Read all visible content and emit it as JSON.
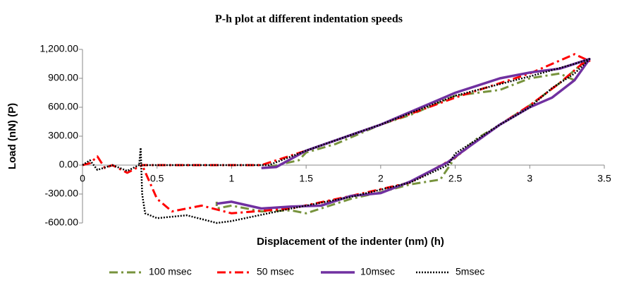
{
  "chart_data": {
    "type": "line",
    "title": "P-h plot at different indentation speeds",
    "xlabel": "Displacement of the indenter (nm) (h)",
    "ylabel": "Load (nN) (P)",
    "xlim": [
      0,
      3.5
    ],
    "xticks": [
      0,
      0.5,
      1,
      1.5,
      2,
      2.5,
      3,
      3.5
    ],
    "ylim": [
      -600,
      1200
    ],
    "yticks": [
      {
        "value": -600,
        "label": "-600.00"
      },
      {
        "value": -300,
        "label": "-300.00"
      },
      {
        "value": 0,
        "label": "0.00"
      },
      {
        "value": 300,
        "label": "300.00"
      },
      {
        "value": 600,
        "label": "600.00"
      },
      {
        "value": 900,
        "label": "900.00"
      },
      {
        "value": 1200,
        "label": "1,200.00"
      }
    ],
    "grid": false,
    "legend": "bottom",
    "series": [
      {
        "name": "100 msec",
        "color": "#77933c",
        "dash": "dashdot",
        "x": [
          1.25,
          1.45,
          1.5,
          1.7,
          2.0,
          2.2,
          2.5,
          2.8,
          3.0,
          3.2,
          3.3,
          3.4,
          3.35,
          3.2,
          3.0,
          2.8,
          2.65,
          2.5,
          2.4,
          2.2,
          2.0,
          1.8,
          1.5,
          1.4,
          1.2,
          1.0,
          0.9,
          0.9
        ],
        "values": [
          -20,
          50,
          130,
          220,
          420,
          520,
          720,
          780,
          900,
          950,
          880,
          1100,
          1050,
          850,
          620,
          420,
          280,
          80,
          -150,
          -200,
          -280,
          -350,
          -500,
          -470,
          -480,
          -420,
          -450,
          -380
        ]
      },
      {
        "name": "50 msec",
        "color": "#ff0000",
        "dash": "dashdot",
        "x": [
          0,
          0.05,
          0.1,
          0.15,
          0.2,
          0.3,
          0.4,
          1.2,
          1.5,
          2.0,
          2.5,
          3.0,
          3.3,
          3.4,
          3.35,
          3.2,
          3.0,
          2.8,
          2.6,
          2.5,
          2.2,
          1.8,
          1.4,
          1.0,
          0.8,
          0.6,
          0.5,
          0.4
        ],
        "values": [
          0,
          20,
          90,
          -30,
          0,
          -80,
          0,
          0,
          150,
          420,
          700,
          950,
          1150,
          1080,
          1050,
          850,
          620,
          420,
          200,
          80,
          -180,
          -320,
          -450,
          -500,
          -420,
          -480,
          -350,
          0
        ]
      },
      {
        "name": "10msec",
        "color": "#7030a0",
        "dash": "solid",
        "x": [
          1.2,
          1.3,
          1.5,
          2.0,
          2.5,
          2.8,
          3.0,
          3.2,
          3.4,
          3.3,
          3.15,
          3.0,
          2.8,
          2.6,
          2.45,
          2.2,
          2.0,
          1.8,
          1.6,
          1.4,
          1.2,
          1.0,
          0.9
        ],
        "values": [
          -30,
          -20,
          150,
          420,
          750,
          900,
          960,
          1000,
          1100,
          880,
          700,
          600,
          420,
          200,
          30,
          -170,
          -290,
          -320,
          -420,
          -430,
          -450,
          -380,
          -400
        ]
      },
      {
        "name": "5msec",
        "color": "#000000",
        "dash": "dotted",
        "x": [
          0,
          0.05,
          0.1,
          0.2,
          0.3,
          0.38,
          1.25,
          1.5,
          2.0,
          2.5,
          3.0,
          3.3,
          3.4,
          3.3,
          3.15,
          3.0,
          2.8,
          2.6,
          2.5,
          2.45,
          2.2,
          1.8,
          1.4,
          1.0,
          0.9,
          0.7,
          0.5,
          0.42,
          0.4,
          0.39,
          0.38
        ],
        "values": [
          0,
          50,
          -50,
          0,
          -60,
          0,
          0,
          150,
          420,
          720,
          920,
          1050,
          1100,
          950,
          800,
          600,
          420,
          220,
          120,
          0,
          -180,
          -330,
          -450,
          -580,
          -600,
          -520,
          -550,
          -500,
          -300,
          180,
          0
        ]
      }
    ]
  }
}
